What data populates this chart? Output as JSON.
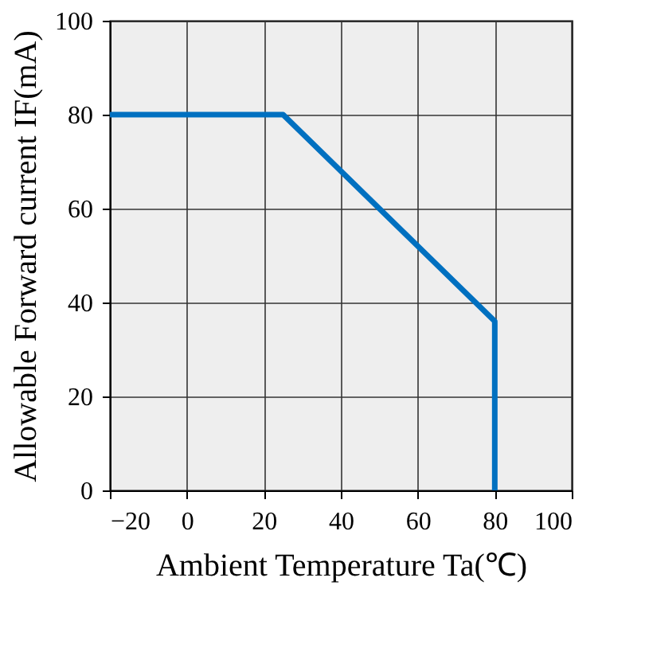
{
  "chart_data": {
    "type": "line",
    "xlabel": "Ambient Temperature Ta(℃)",
    "ylabel": "Allowable Forward current IF(mA)",
    "series": [
      {
        "color": "#0070c0",
        "x": [
          -20,
          25,
          80,
          80
        ],
        "values": [
          80,
          80,
          36,
          0
        ]
      }
    ],
    "xlim": [
      -20,
      100
    ],
    "ylim": [
      0,
      100
    ],
    "xticks": [
      -20,
      0,
      20,
      40,
      60,
      80,
      100
    ],
    "yticks": [
      0,
      20,
      40,
      60,
      80,
      100
    ],
    "grid": true,
    "marker": "none",
    "line_style": "solid"
  }
}
